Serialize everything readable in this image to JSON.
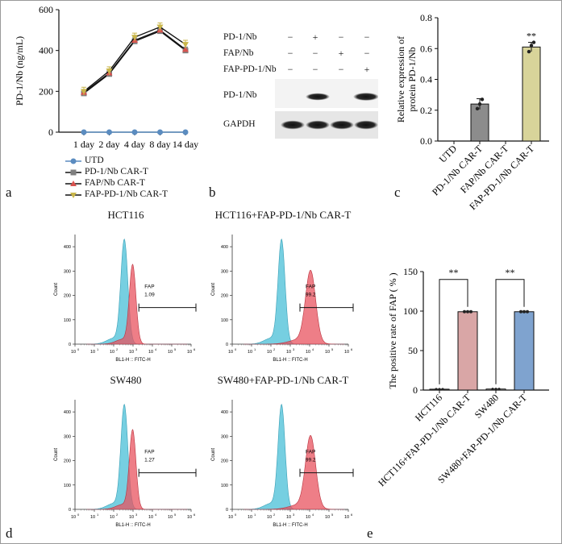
{
  "panel_letters": {
    "a": "a",
    "b": "b",
    "c": "c",
    "d": "d",
    "e": "e"
  },
  "colors": {
    "UTD": "#5b8cc0",
    "PD1": "#7f7f7f",
    "FAP": "#d9534f",
    "FAPPD1": "#c9b64a",
    "hist_control": "#5ec7dc",
    "hist_treated": "#e8535f",
    "bar_pd1": "#8c8c8c",
    "bar_fappd1": "#d8d49a",
    "bar_hct": "#d9a6a6",
    "bar_sw": "#7fa3cf"
  },
  "chart_data": [
    {
      "id": "a",
      "type": "line",
      "title": "",
      "ylabel": "PD-1/Nb (ng/mL)",
      "categories": [
        "1 day",
        "2 day",
        "4 day",
        "8 day",
        "14 day"
      ],
      "ylim": [
        0,
        600
      ],
      "yticks": [
        "0",
        "200",
        "400",
        "600"
      ],
      "series": [
        {
          "name": "UTD",
          "values": [
            0,
            0,
            0,
            0,
            0
          ]
        },
        {
          "name": "PD-1/Nb CAR-T",
          "values": [
            190,
            285,
            445,
            495,
            400
          ]
        },
        {
          "name": "FAP/Nb CAR-T",
          "values": [
            195,
            290,
            450,
            500,
            405
          ]
        },
        {
          "name": "FAP-PD-1/Nb CAR-T",
          "values": [
            200,
            300,
            465,
            515,
            430
          ]
        }
      ]
    },
    {
      "id": "c",
      "type": "bar",
      "ylabel": "Relative expression of\nprotein PD-1/Nb",
      "categories": [
        "UTD",
        "PD-1/Nb CAR-T",
        "FAP/Nb CAR-T",
        "FAP-PD-1/Nb CAR-T"
      ],
      "values": [
        0,
        0.24,
        0,
        0.61
      ],
      "ylim": [
        0,
        0.8
      ],
      "yticks": [
        "0.0",
        "0.2",
        "0.4",
        "0.6",
        "0.8"
      ],
      "annotations": [
        {
          "category": "FAP-PD-1/Nb CAR-T",
          "text": "**"
        }
      ]
    },
    {
      "id": "e",
      "type": "bar",
      "ylabel": "The positive rate of FAP ( % )",
      "categories": [
        "HCT116",
        "HCT116+FAP-PD-1/Nb CAR-T",
        "SW480",
        "SW480+FAP-PD-1/Nb CAR-T"
      ],
      "values": [
        1.1,
        99.2,
        1.3,
        99.2
      ],
      "ylim": [
        0,
        150
      ],
      "yticks": [
        "0",
        "50",
        "100",
        "150"
      ],
      "annotations": [
        {
          "pair": [
            0,
            1
          ],
          "text": "**"
        },
        {
          "pair": [
            2,
            3
          ],
          "text": "**"
        }
      ]
    },
    {
      "id": "d",
      "type": "histogram",
      "xlabel": "BL1-H :: FITC-H",
      "ylabel": "Count",
      "yticks": [
        "0",
        "100",
        "200",
        "300",
        "400"
      ],
      "xticks": [
        "10",
        "10",
        "10",
        "10",
        "10",
        "10",
        "10"
      ],
      "xtick_exponents": [
        "0",
        "1",
        "2",
        "3",
        "4",
        "5",
        "6"
      ],
      "gate_label": "FAP",
      "plots": [
        {
          "title": "HCT116",
          "value": "1.09",
          "shift": 0
        },
        {
          "title": "HCT116+FAP-PD-1/Nb CAR-T",
          "value": "99.2",
          "shift": 1
        },
        {
          "title": "SW480",
          "value": "1.27",
          "shift": 0
        },
        {
          "title": "SW480+FAP-PD-1/Nb CAR-T",
          "value": "99.2",
          "shift": 1
        }
      ]
    }
  ],
  "blot": {
    "rows": [
      {
        "label": "PD-1/Nb",
        "signs": [
          "−",
          "+",
          "−",
          "−"
        ]
      },
      {
        "label": "FAP/Nb",
        "signs": [
          "−",
          "−",
          "+",
          "−"
        ]
      },
      {
        "label": "FAP-PD-1/Nb",
        "signs": [
          "−",
          "−",
          "−",
          "+"
        ]
      }
    ],
    "bands": [
      {
        "label": "PD-1/Nb"
      },
      {
        "label": "GAPDH"
      }
    ]
  }
}
